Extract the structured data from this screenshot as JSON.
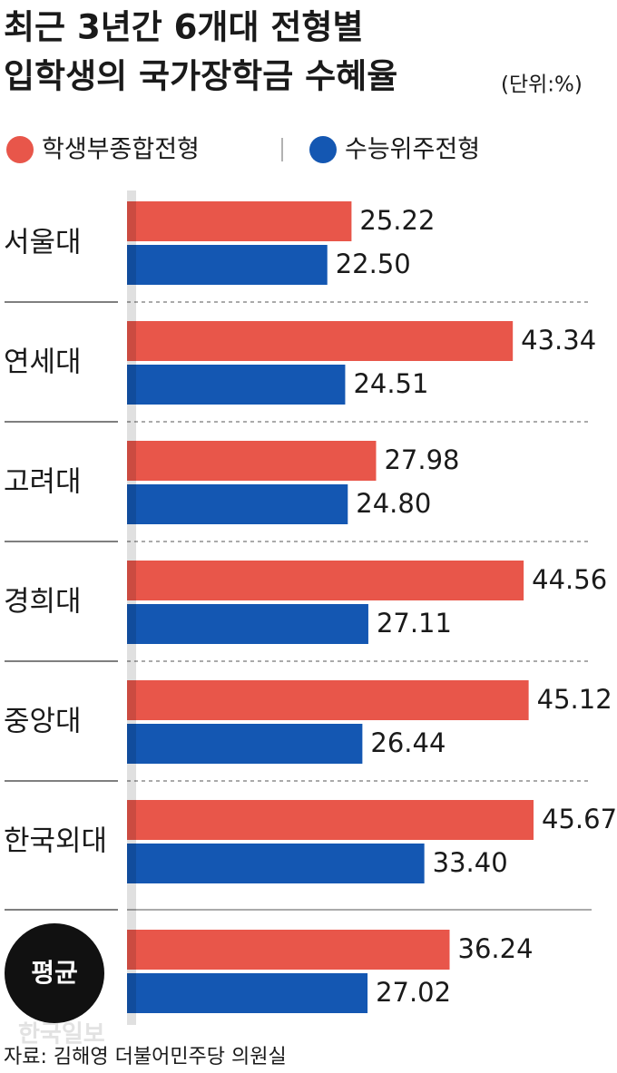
{
  "chart_data": {
    "type": "bar",
    "orientation": "horizontal",
    "title": [
      "최근 3년간 6개대 전형별",
      "입학생의 국가장학금 수혜율"
    ],
    "unit": "(단위:%)",
    "categories": [
      "서울대",
      "연세대",
      "고려대",
      "경희대",
      "중앙대",
      "한국외대",
      "평균"
    ],
    "series": [
      {
        "name": "학생부종합전형",
        "color": "#e8564a",
        "values": [
          25.22,
          43.34,
          27.98,
          44.56,
          45.12,
          45.67,
          36.24
        ],
        "value_labels": [
          "25.22",
          "43.34",
          "27.98",
          "44.56",
          "45.12",
          "45.67",
          "36.24"
        ]
      },
      {
        "name": "수능위주전형",
        "color": "#1457b2",
        "values": [
          22.5,
          24.51,
          24.8,
          27.11,
          26.44,
          33.4,
          27.02
        ],
        "value_labels": [
          "22.50",
          "24.51",
          "24.80",
          "27.11",
          "26.44",
          "33.40",
          "27.02"
        ]
      }
    ],
    "source": "자료: 김해영 더불어민주당 의원실",
    "watermark": "한국일보"
  }
}
